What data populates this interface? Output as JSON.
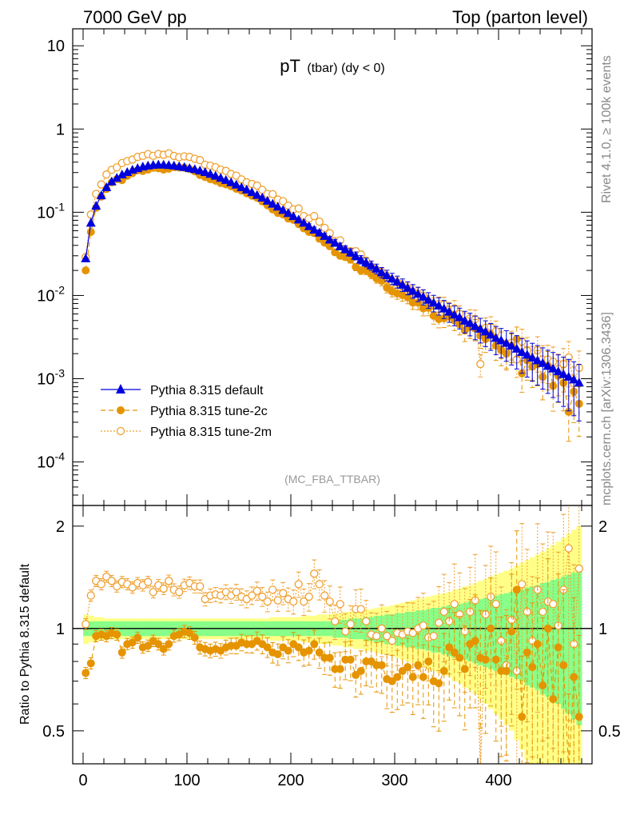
{
  "header": {
    "left_title": "7000 GeV pp",
    "right_title": "Top (parton level)"
  },
  "side_labels": {
    "rivet": "Rivet 4.1.0, ≥ 100k events",
    "mcplots": "mcplots.cern.ch [arXiv:1306.3436]"
  },
  "colors": {
    "default": "#0000dd",
    "tune2c": "#e59400",
    "tune2m": "#f0a030",
    "band_yellow": "#ffff88",
    "band_green": "#88ff88"
  },
  "chart_data": [
    {
      "type": "line",
      "title_main": "pT",
      "title_sub": "(tbar) (dy < 0)",
      "analysis_tag": "(MC_FBA_TTBAR)",
      "yscale": "log",
      "ylim": [
        3e-05,
        16
      ],
      "xlim": [
        -10,
        490
      ],
      "ytick_labels": [
        "10",
        "1",
        "10^-1",
        "10^-2",
        "10^-3",
        "10^-4"
      ],
      "legend_position": "bottom-left",
      "x": [
        2.5,
        7.5,
        12.5,
        17.5,
        22.5,
        27.5,
        32.5,
        37.5,
        42.5,
        47.5,
        52.5,
        57.5,
        62.5,
        67.5,
        72.5,
        77.5,
        82.5,
        87.5,
        92.5,
        97.5,
        102.5,
        107.5,
        112.5,
        117.5,
        122.5,
        127.5,
        132.5,
        137.5,
        142.5,
        147.5,
        152.5,
        157.5,
        162.5,
        167.5,
        172.5,
        177.5,
        182.5,
        187.5,
        192.5,
        197.5,
        202.5,
        207.5,
        212.5,
        217.5,
        222.5,
        227.5,
        232.5,
        237.5,
        242.5,
        247.5,
        252.5,
        257.5,
        262.5,
        267.5,
        272.5,
        277.5,
        282.5,
        287.5,
        292.5,
        297.5,
        302.5,
        307.5,
        312.5,
        317.5,
        322.5,
        327.5,
        332.5,
        337.5,
        342.5,
        347.5,
        352.5,
        357.5,
        362.5,
        367.5,
        372.5,
        377.5,
        382.5,
        387.5,
        392.5,
        397.5,
        402.5,
        407.5,
        412.5,
        417.5,
        422.5,
        427.5,
        432.5,
        437.5,
        442.5,
        447.5,
        452.5,
        457.5,
        462.5,
        467.5,
        472.5,
        477.5
      ],
      "series": [
        {
          "name": "Pythia 8.315 default",
          "marker": "triangle",
          "line": "solid",
          "values": [
            0.028,
            0.075,
            0.12,
            0.16,
            0.2,
            0.235,
            0.26,
            0.285,
            0.305,
            0.325,
            0.34,
            0.355,
            0.365,
            0.372,
            0.375,
            0.374,
            0.37,
            0.365,
            0.358,
            0.35,
            0.34,
            0.33,
            0.318,
            0.305,
            0.29,
            0.275,
            0.26,
            0.245,
            0.23,
            0.215,
            0.2,
            0.188,
            0.175,
            0.162,
            0.15,
            0.138,
            0.127,
            0.117,
            0.107,
            0.098,
            0.09,
            0.082,
            0.075,
            0.068,
            0.062,
            0.057,
            0.052,
            0.047,
            0.043,
            0.039,
            0.036,
            0.033,
            0.03,
            0.027,
            0.025,
            0.023,
            0.021,
            0.019,
            0.0175,
            0.016,
            0.0147,
            0.0135,
            0.0124,
            0.0114,
            0.0105,
            0.0097,
            0.0089,
            0.0082,
            0.0076,
            0.007,
            0.0064,
            0.0059,
            0.0055,
            0.005,
            0.0047,
            0.0043,
            0.004,
            0.0037,
            0.0034,
            0.0031,
            0.0029,
            0.0027,
            0.0025,
            0.0023,
            0.0021,
            0.00195,
            0.0018,
            0.00167,
            0.00155,
            0.00143,
            0.00133,
            0.00123,
            0.00114,
            0.00106,
            0.00098,
            0.0009
          ],
          "ratio": [
            1,
            1,
            1,
            1,
            1,
            1,
            1,
            1,
            1,
            1,
            1,
            1,
            1,
            1,
            1,
            1,
            1,
            1,
            1,
            1,
            1,
            1,
            1,
            1,
            1,
            1,
            1,
            1,
            1,
            1,
            1,
            1,
            1,
            1,
            1,
            1,
            1,
            1,
            1,
            1,
            1,
            1,
            1,
            1,
            1,
            1,
            1,
            1,
            1,
            1,
            1,
            1,
            1,
            1,
            1,
            1,
            1,
            1,
            1,
            1,
            1,
            1,
            1,
            1,
            1,
            1,
            1,
            1,
            1,
            1,
            1,
            1,
            1,
            1,
            1,
            1,
            1,
            1,
            1,
            1,
            1,
            1,
            1,
            1,
            1,
            1,
            1,
            1,
            1,
            1,
            1,
            1,
            1,
            1,
            1,
            1
          ]
        },
        {
          "name": "Pythia 8.315 tune-2c",
          "marker": "filled-circle",
          "line": "dashed",
          "ratio": [
            0.74,
            0.79,
            0.95,
            0.96,
            0.95,
            0.97,
            0.96,
            0.85,
            0.9,
            0.91,
            0.94,
            0.88,
            0.89,
            0.92,
            0.9,
            0.87,
            0.9,
            0.95,
            0.96,
            0.98,
            0.97,
            0.94,
            0.88,
            0.87,
            0.86,
            0.87,
            0.86,
            0.88,
            0.89,
            0.89,
            0.91,
            0.9,
            0.9,
            0.92,
            0.9,
            0.88,
            0.85,
            0.84,
            0.88,
            0.86,
            0.9,
            0.88,
            0.85,
            0.86,
            0.9,
            0.85,
            0.82,
            0.82,
            0.76,
            0.76,
            0.81,
            0.81,
            0.73,
            0.75,
            0.8,
            0.8,
            0.78,
            0.78,
            0.71,
            0.7,
            0.72,
            0.75,
            0.77,
            0.72,
            0.78,
            0.72,
            0.8,
            0.7,
            0.69,
            0.75,
            0.88,
            0.85,
            0.82,
            0.76,
            0.9,
            0.92,
            0.82,
            0.81,
            1.0,
            0.81,
            0.75,
            0.75,
            0.98,
            1.3,
            0.55,
            0.85,
            0.77,
            0.9,
            0.68,
            1.0,
            0.62,
            0.88,
            0.78,
            0.38,
            0.72,
            0.55
          ],
          "values": [
            0.02,
            0.058,
            0.113,
            0.154,
            0.19,
            0.228,
            0.25,
            0.243,
            0.274,
            0.295,
            0.319,
            0.313,
            0.325,
            0.342,
            0.337,
            0.325,
            0.333,
            0.347,
            0.344,
            0.343,
            0.33,
            0.31,
            0.28,
            0.265,
            0.249,
            0.239,
            0.224,
            0.216,
            0.205,
            0.191,
            0.182,
            0.169,
            0.158,
            0.149,
            0.135,
            0.121,
            0.108,
            0.098,
            0.094,
            0.084,
            0.081,
            0.072,
            0.064,
            0.058,
            0.056,
            0.048,
            0.043,
            0.039,
            0.033,
            0.03,
            0.029,
            0.027,
            0.022,
            0.02,
            0.02,
            0.018,
            0.016,
            0.015,
            0.0124,
            0.0112,
            0.0106,
            0.0101,
            0.0095,
            0.0082,
            0.0082,
            0.007,
            0.0071,
            0.0057,
            0.0052,
            0.0053,
            0.0056,
            0.005,
            0.0045,
            0.0038,
            0.0042,
            0.004,
            0.0033,
            0.003,
            0.0034,
            0.0025,
            0.0022,
            0.002,
            0.0025,
            0.003,
            0.00116,
            0.00166,
            0.00139,
            0.0015,
            0.00105,
            0.00143,
            0.00082,
            0.00108,
            0.00089,
            0.0004,
            0.0007,
            0.0005
          ]
        },
        {
          "name": "Pythia 8.315 tune-2m",
          "marker": "open-circle",
          "line": "dotted",
          "ratio": [
            1.03,
            1.25,
            1.38,
            1.35,
            1.42,
            1.38,
            1.33,
            1.37,
            1.35,
            1.32,
            1.36,
            1.34,
            1.37,
            1.28,
            1.34,
            1.31,
            1.38,
            1.3,
            1.28,
            1.34,
            1.36,
            1.33,
            1.33,
            1.22,
            1.25,
            1.26,
            1.25,
            1.28,
            1.25,
            1.28,
            1.24,
            1.22,
            1.25,
            1.29,
            1.24,
            1.2,
            1.3,
            1.21,
            1.27,
            1.22,
            1.2,
            1.35,
            1.2,
            1.24,
            1.45,
            1.35,
            1.25,
            1.2,
            1.05,
            1.18,
            0.98,
            1.03,
            1.14,
            1.14,
            1.05,
            0.96,
            0.95,
            1.0,
            0.95,
            0.92,
            0.97,
            0.96,
            0.98,
            0.97,
            1.0,
            1.02,
            0.94,
            0.95,
            1.04,
            1.12,
            1.05,
            1.18,
            1.1,
            0.98,
            1.12,
            1.21,
            0.38,
            1.1,
            1.24,
            1.18,
            0.92,
            0.78,
            1.06,
            0.75,
            1.35,
            1.12,
            0.92,
            1.3,
            1.12,
            1.2,
            1.18,
            1.02,
            1.3,
            1.72,
            0.9,
            1.5
          ],
          "values": [
            0.029,
            0.094,
            0.166,
            0.216,
            0.284,
            0.324,
            0.346,
            0.39,
            0.412,
            0.429,
            0.462,
            0.476,
            0.5,
            0.476,
            0.502,
            0.49,
            0.51,
            0.475,
            0.458,
            0.469,
            0.462,
            0.439,
            0.423,
            0.372,
            0.363,
            0.347,
            0.325,
            0.314,
            0.288,
            0.275,
            0.248,
            0.229,
            0.219,
            0.209,
            0.186,
            0.166,
            0.165,
            0.142,
            0.136,
            0.12,
            0.108,
            0.111,
            0.09,
            0.084,
            0.09,
            0.077,
            0.065,
            0.056,
            0.045,
            0.046,
            0.035,
            0.034,
            0.034,
            0.031,
            0.026,
            0.022,
            0.02,
            0.019,
            0.0166,
            0.0147,
            0.0143,
            0.013,
            0.0122,
            0.0111,
            0.0105,
            0.0099,
            0.0084,
            0.0078,
            0.0079,
            0.0078,
            0.0067,
            0.007,
            0.006,
            0.0049,
            0.0053,
            0.0052,
            0.0015,
            0.0041,
            0.0042,
            0.0037,
            0.0027,
            0.0021,
            0.0027,
            0.0017,
            0.0028,
            0.0022,
            0.0017,
            0.0022,
            0.0017,
            0.0017,
            0.0016,
            0.0013,
            0.0015,
            0.0018,
            0.00088,
            0.00135
          ]
        }
      ]
    },
    {
      "type": "line",
      "ylabel": "Ratio to Pythia 8.315 default",
      "ylim": [
        0.4,
        2.3
      ],
      "xlim": [
        -10,
        490
      ],
      "ytick_labels": [
        "0.5",
        "1",
        "2"
      ],
      "xtick_labels": [
        "0",
        "100",
        "200",
        "300",
        "400"
      ],
      "band_inner_halfwidth": [
        0.05,
        0.05,
        0.05,
        0.05,
        0.05,
        0.05,
        0.05,
        0.05,
        0.05,
        0.05,
        0.05,
        0.05,
        0.05,
        0.05,
        0.05,
        0.05,
        0.05,
        0.05,
        0.05,
        0.05,
        0.05,
        0.05,
        0.05,
        0.05,
        0.05,
        0.05,
        0.05,
        0.05,
        0.05,
        0.05,
        0.05,
        0.05,
        0.05,
        0.05,
        0.05,
        0.05,
        0.05,
        0.05,
        0.05,
        0.05,
        0.05,
        0.05,
        0.05,
        0.05,
        0.05,
        0.05,
        0.05,
        0.05,
        0.06,
        0.06,
        0.06,
        0.07,
        0.07,
        0.07,
        0.08,
        0.08,
        0.09,
        0.09,
        0.1,
        0.1,
        0.11,
        0.11,
        0.12,
        0.12,
        0.13,
        0.13,
        0.14,
        0.15,
        0.15,
        0.16,
        0.17,
        0.18,
        0.18,
        0.19,
        0.2,
        0.21,
        0.22,
        0.23,
        0.24,
        0.25,
        0.26,
        0.27,
        0.28,
        0.29,
        0.3,
        0.32,
        0.33,
        0.34,
        0.36,
        0.37,
        0.39,
        0.4,
        0.42,
        0.44,
        0.46,
        0.48
      ],
      "band_outer_halfwidth": [
        0.1,
        0.09,
        0.08,
        0.08,
        0.07,
        0.07,
        0.07,
        0.07,
        0.07,
        0.07,
        0.07,
        0.07,
        0.07,
        0.07,
        0.07,
        0.07,
        0.07,
        0.07,
        0.07,
        0.07,
        0.07,
        0.07,
        0.07,
        0.07,
        0.07,
        0.07,
        0.07,
        0.07,
        0.07,
        0.07,
        0.07,
        0.07,
        0.07,
        0.07,
        0.07,
        0.07,
        0.08,
        0.08,
        0.08,
        0.08,
        0.08,
        0.08,
        0.09,
        0.09,
        0.09,
        0.1,
        0.1,
        0.1,
        0.11,
        0.11,
        0.12,
        0.12,
        0.13,
        0.13,
        0.14,
        0.14,
        0.15,
        0.16,
        0.16,
        0.17,
        0.18,
        0.19,
        0.2,
        0.21,
        0.22,
        0.23,
        0.24,
        0.25,
        0.26,
        0.27,
        0.28,
        0.3,
        0.31,
        0.33,
        0.34,
        0.36,
        0.38,
        0.4,
        0.42,
        0.44,
        0.46,
        0.48,
        0.5,
        0.53,
        0.56,
        0.59,
        0.62,
        0.65,
        0.68,
        0.72,
        0.76,
        0.8,
        0.85,
        0.9,
        0.95,
        1.0
      ]
    }
  ]
}
